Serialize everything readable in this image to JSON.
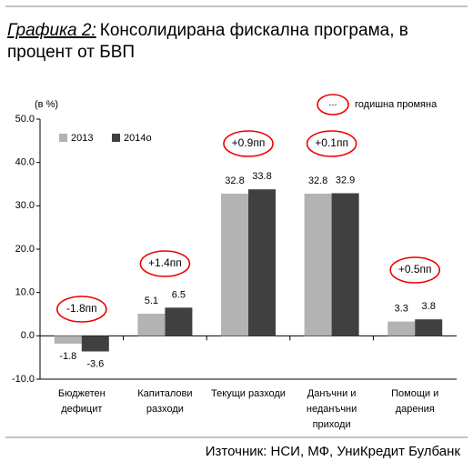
{
  "chart_data": {
    "type": "bar",
    "title_prefix": "Графика 2:",
    "title_lines": [
      "Консолидирана фискална програма, в",
      "процент от БВП"
    ],
    "y_label": "(в %)",
    "categories": [
      [
        "Бюджетен",
        "дефицит"
      ],
      [
        "Капиталови",
        "разходи"
      ],
      [
        "Текущи  разходи"
      ],
      [
        "Данъчни и",
        "неданъчни",
        "приходи"
      ],
      [
        "Помощи и",
        "дарения"
      ]
    ],
    "series": [
      {
        "name": "2013",
        "color": "#b3b3b3",
        "values": [
          -1.8,
          5.1,
          32.8,
          32.8,
          3.3
        ]
      },
      {
        "name": "2014о",
        "color": "#404040",
        "values": [
          -3.6,
          6.5,
          33.8,
          32.9,
          3.8
        ]
      }
    ],
    "annotations": [
      "-1.8пп",
      "+1.4пп",
      "+0.9пп",
      "+0.1пп",
      "+0.5пп"
    ],
    "annotation_legend": {
      "symbol": "...",
      "text": "годишна промяна"
    },
    "ylim": [
      -10,
      50
    ],
    "yticks": [
      {
        "value": -10,
        "label": "-10.0"
      },
      {
        "value": 0,
        "label": "0.0"
      },
      {
        "value": 10,
        "label": "10.0"
      },
      {
        "value": 20,
        "label": "20.0"
      },
      {
        "value": 30,
        "label": "30.0"
      },
      {
        "value": 40,
        "label": "40.0"
      },
      {
        "value": 50,
        "label": "50.0"
      }
    ],
    "source": "Източник: НСИ, МФ, УниКредит Булбанк"
  }
}
